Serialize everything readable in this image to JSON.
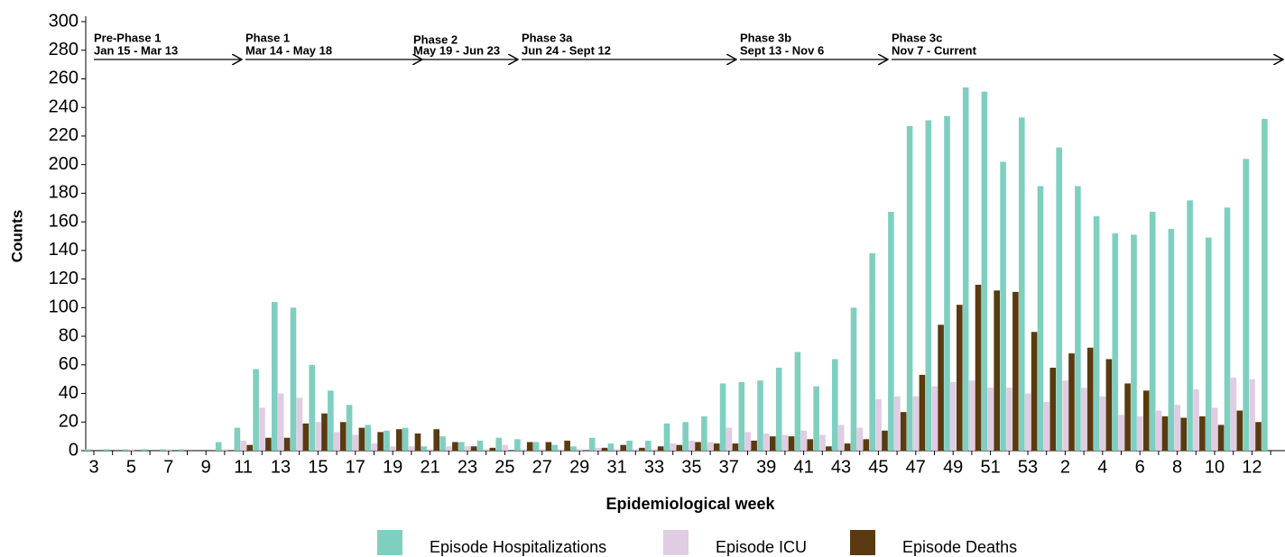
{
  "chart_data": {
    "type": "bar",
    "y_label": "Counts",
    "x_label": "Epidemiological week",
    "categories": [
      "3",
      null,
      "5",
      null,
      "7",
      null,
      "9",
      null,
      "11",
      null,
      "13",
      null,
      "15",
      null,
      "17",
      null,
      "19",
      null,
      "21",
      null,
      "23",
      null,
      "25",
      null,
      "27",
      null,
      "29",
      null,
      "31",
      null,
      "33",
      null,
      "35",
      null,
      "37",
      null,
      "39",
      null,
      "41",
      null,
      "43",
      null,
      "45",
      null,
      "47",
      null,
      "49",
      null,
      "51",
      null,
      "53",
      null,
      "2",
      null,
      "4",
      null,
      "6",
      null,
      "8",
      null,
      "10",
      null,
      "12",
      null
    ],
    "series": [
      {
        "name": "Episode Hospitalizations",
        "color": "#7fcfc0",
        "values": [
          1,
          1,
          1,
          1,
          1,
          1,
          0,
          6,
          16,
          57,
          104,
          100,
          60,
          42,
          32,
          18,
          14,
          16,
          3,
          10,
          6,
          7,
          9,
          8,
          6,
          4,
          3,
          9,
          5,
          7,
          7,
          19,
          20,
          24,
          47,
          48,
          49,
          58,
          69,
          45,
          64,
          100,
          138,
          167,
          227,
          231,
          234,
          254,
          251,
          202,
          233,
          185,
          212,
          185,
          164,
          152,
          151,
          167,
          155,
          175,
          149,
          170,
          204,
          232
        ]
      },
      {
        "name": "Episode ICU",
        "color": "#e0cce3",
        "values": [
          0,
          0,
          1,
          0,
          1,
          0,
          0,
          1,
          7,
          30,
          40,
          37,
          20,
          13,
          11,
          5,
          3,
          3,
          1,
          3,
          3,
          1,
          4,
          1,
          1,
          1,
          1,
          2,
          1,
          1,
          1,
          5,
          7,
          6,
          16,
          13,
          12,
          11,
          14,
          11,
          18,
          16,
          36,
          38,
          38,
          45,
          48,
          49,
          44,
          44,
          40,
          34,
          49,
          44,
          38,
          25,
          24,
          28,
          32,
          43,
          30,
          51,
          50,
          null
        ]
      },
      {
        "name": "Episode Deaths",
        "color": "#5a3a10",
        "values": [
          0,
          0,
          0,
          0,
          0,
          0,
          0,
          0,
          4,
          9,
          9,
          19,
          26,
          20,
          16,
          13,
          15,
          12,
          15,
          6,
          3,
          2,
          0,
          6,
          6,
          7,
          0,
          2,
          4,
          2,
          3,
          4,
          6,
          5,
          5,
          7,
          10,
          10,
          8,
          3,
          5,
          8,
          14,
          27,
          53,
          88,
          102,
          116,
          112,
          111,
          83,
          58,
          68,
          72,
          64,
          47,
          42,
          24,
          23,
          24,
          18,
          28,
          20,
          null
        ]
      }
    ],
    "ylim": [
      0,
      300
    ],
    "yticks": [
      0,
      20,
      40,
      60,
      80,
      100,
      120,
      140,
      160,
      180,
      200,
      220,
      240,
      260,
      280,
      300
    ],
    "phases": [
      {
        "name": "Pre-Phase 1",
        "dates": "Jan 15 - Mar 13"
      },
      {
        "name": "Phase 1",
        "dates": "Mar 14 - May 18"
      },
      {
        "name": "Phase 2",
        "dates": "May 19 - Jun 23"
      },
      {
        "name": "Phase 3a",
        "dates": "Jun 24 - Sept 12"
      },
      {
        "name": "Phase 3b",
        "dates": "Sept 13 - Nov 6"
      },
      {
        "name": "Phase 3c",
        "dates": "Nov 7 - Current"
      }
    ]
  }
}
